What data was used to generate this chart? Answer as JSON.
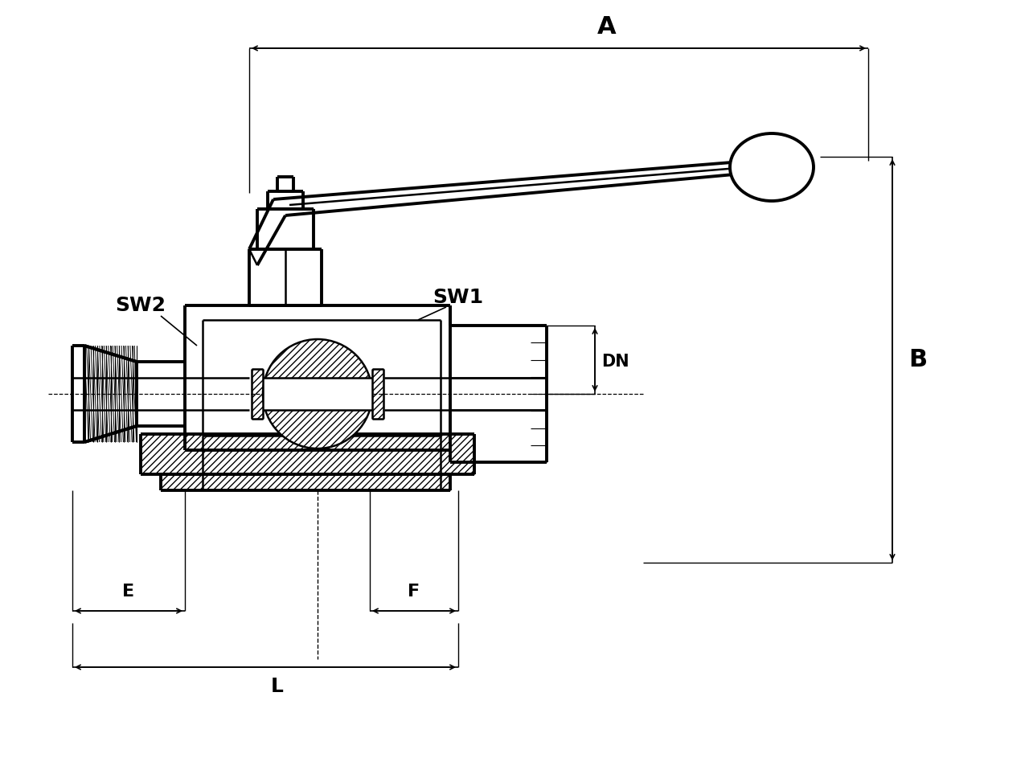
{
  "bg_color": "#ffffff",
  "lw": 1.8,
  "blw": 2.8,
  "labels": {
    "A": "A",
    "B": "B",
    "DN": "DN",
    "E": "E",
    "F": "F",
    "L": "L",
    "SW1": "SW1",
    "SW2": "SW2"
  }
}
